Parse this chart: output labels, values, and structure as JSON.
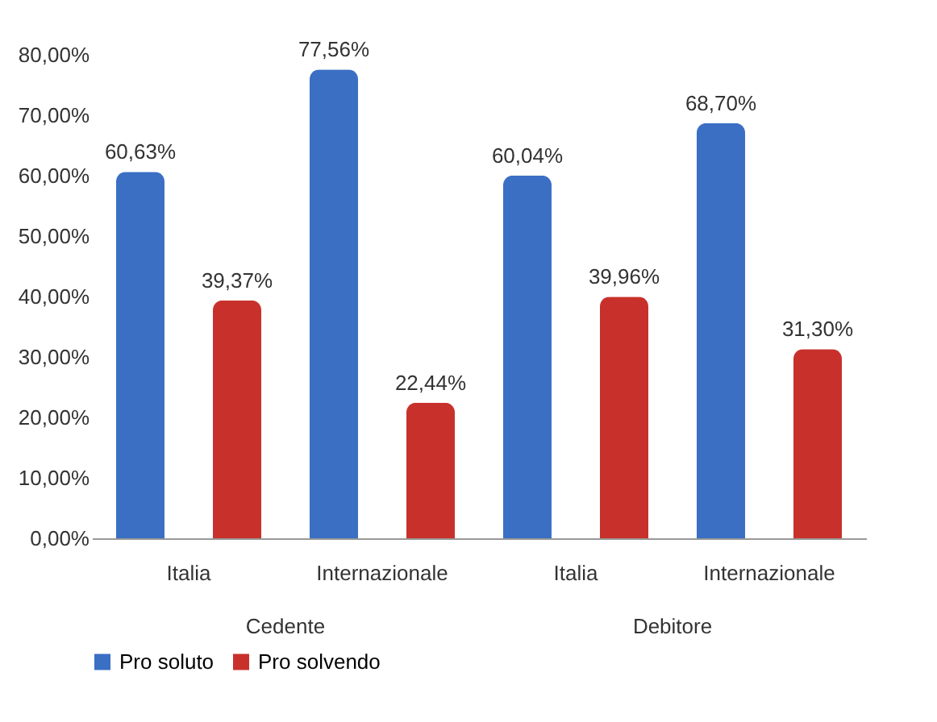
{
  "chart_data": {
    "type": "bar",
    "categories": [
      "Italia",
      "Internazionale",
      "Italia",
      "Internazionale"
    ],
    "series": [
      {
        "name": "Pro soluto",
        "color": "#3a6fc4",
        "values": [
          60.63,
          77.56,
          60.04,
          68.7
        ],
        "value_labels": [
          "60,63%",
          "77,56%",
          "60,04%",
          "68,70%"
        ]
      },
      {
        "name": "Pro solvendo",
        "color": "#c8312b",
        "values": [
          39.37,
          22.44,
          39.96,
          31.3
        ],
        "value_labels": [
          "39,37%",
          "22,44%",
          "39,96%",
          "31,30%"
        ]
      }
    ],
    "annotations": [
      "Cedente",
      "Debitore"
    ],
    "ylim": [
      0,
      80
    ],
    "yticks": [
      {
        "value": 0,
        "label": "0,00%"
      },
      {
        "value": 10,
        "label": "10,00%"
      },
      {
        "value": 20,
        "label": "20,00%"
      },
      {
        "value": 30,
        "label": "30,00%"
      },
      {
        "value": 40,
        "label": "40,00%"
      },
      {
        "value": 50,
        "label": "50,00%"
      },
      {
        "value": 60,
        "label": "60,00%"
      },
      {
        "value": 70,
        "label": "70,00%"
      },
      {
        "value": 80,
        "label": "80,00%"
      }
    ],
    "grid": false,
    "legend": "bottom"
  }
}
